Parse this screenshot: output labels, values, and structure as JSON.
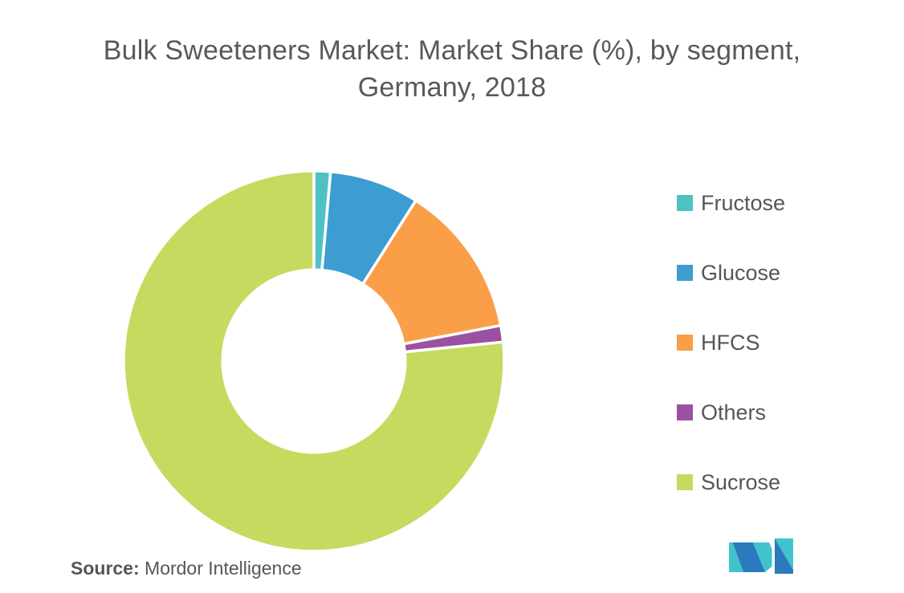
{
  "title": {
    "line1": "Bulk Sweeteners Market: Market Share (%), by segment,",
    "line2": "Germany, 2018"
  },
  "source": {
    "label": "Source:",
    "name": "Mordor Intelligence"
  },
  "colors": {
    "background": "#ffffff",
    "title_text": "#57585b",
    "legend_text": "#55565a",
    "slice_separator": "#ffffff",
    "logo_teal": "#41c3cb",
    "logo_blue": "#2a7abd"
  },
  "chart_data": {
    "type": "pie",
    "subtype": "donut",
    "title": "Bulk Sweeteners Market: Market Share (%), by segment, Germany, 2018",
    "unit": "%",
    "legend_position": "right",
    "start_angle_deg": 0,
    "direction": "clockwise",
    "inner_radius_ratio": 0.48,
    "segments": [
      {
        "label": "Fructose",
        "value": 1.4,
        "color": "#4fc1c4"
      },
      {
        "label": "Glucose",
        "value": 7.6,
        "color": "#3d9cd1"
      },
      {
        "label": "HFCS",
        "value": 13.0,
        "color": "#fa9e47"
      },
      {
        "label": "Others",
        "value": 1.4,
        "color": "#9b519f"
      },
      {
        "label": "Sucrose",
        "value": 76.6,
        "color": "#c6da60"
      }
    ]
  }
}
